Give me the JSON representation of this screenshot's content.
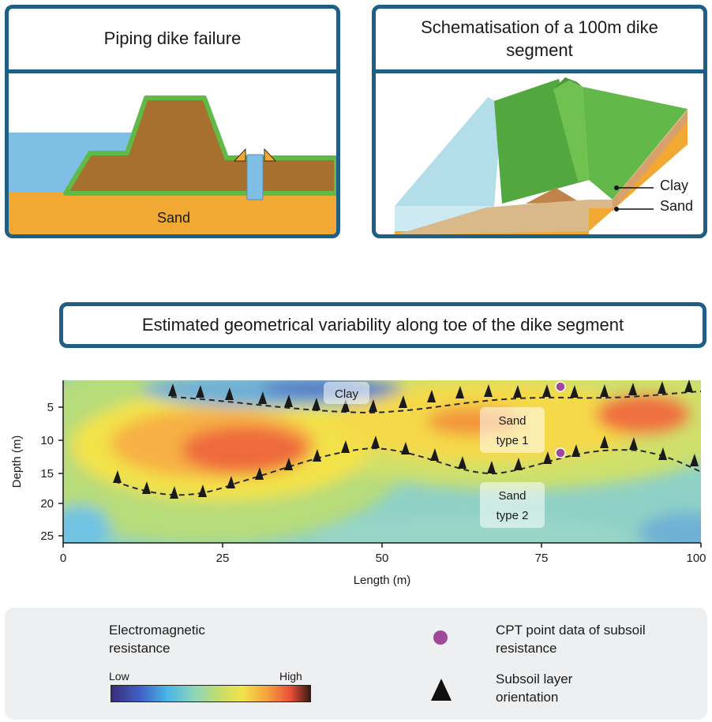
{
  "panel_piping": {
    "title": "Piping dike failure",
    "sand_label": "Sand"
  },
  "panel_schema": {
    "title": "Schematisation of a 100m dike segment",
    "clay_label": "Clay",
    "sand_label": "Sand"
  },
  "banner": {
    "title": "Estimated geometrical variability along toe of the dike segment"
  },
  "section": {
    "clay_label": "Clay",
    "sand1_line1": "Sand",
    "sand1_line2": "type 1",
    "sand2_line1": "Sand",
    "sand2_line2": "type 2",
    "x_axis_label": "Length (m)",
    "y_axis_label": "Depth (m)",
    "x_ticks": [
      "0",
      "25",
      "50",
      "75",
      "100"
    ],
    "y_ticks": [
      "5",
      "10",
      "15",
      "20",
      "25"
    ]
  },
  "legend": {
    "em_title": "Electromagnetic resistance",
    "low": "Low",
    "high": "High",
    "cpt_label": "CPT point data of subsoil resistance",
    "orientation_label": "Subsoil layer orientation"
  },
  "colors": {
    "frame": "#1f5f86",
    "water": "#7fbfe6",
    "dike": "#a8702e",
    "grass": "#5fbb46",
    "sand": "#f2a934",
    "cpt": "#a0489a"
  }
}
